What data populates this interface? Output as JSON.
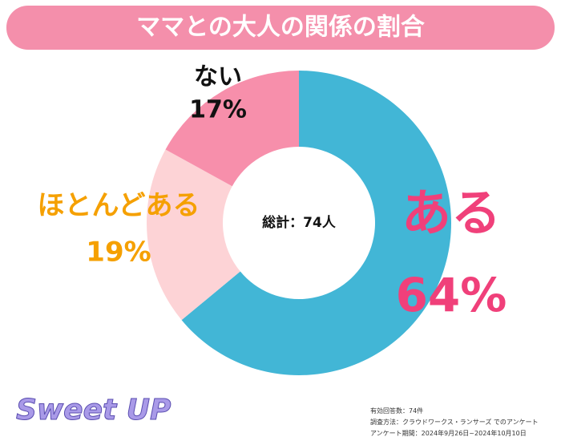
{
  "chart_data": {
    "type": "pie",
    "donut": true,
    "title": "ママとの大人の関係の割合",
    "categories": [
      "ある",
      "ほとんどある",
      "ない"
    ],
    "values": [
      64,
      19,
      17
    ],
    "value_labels": [
      "64%",
      "19%",
      "17%"
    ],
    "colors": [
      "#42b6d6",
      "#fdd3d6",
      "#f78fab"
    ],
    "label_colors": [
      "#f0407a",
      "#f5a000",
      "#111111"
    ],
    "center_label": "総計：74人",
    "notes": [
      "有効回答数：74件",
      "調査方法：クラウドワークス・ランサーズ でのアンケート",
      "アンケート期間：2024年9月26日~2024年10月10日"
    ],
    "brand": "Sweet UP"
  }
}
